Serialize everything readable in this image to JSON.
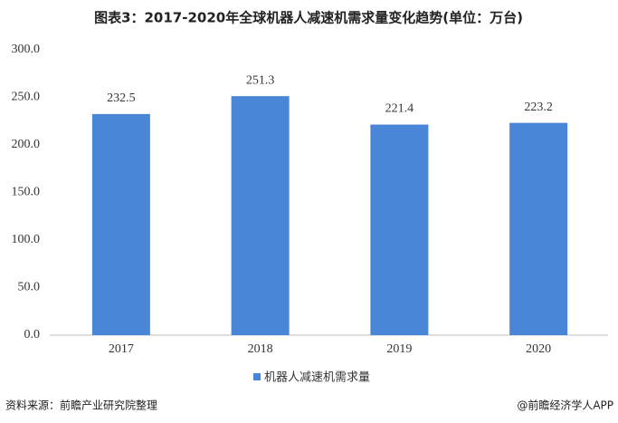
{
  "chart_data": {
    "type": "bar",
    "title": "图表3：2017-2020年全球机器人减速机需求量变化趋势(单位：万台)",
    "categories": [
      "2017",
      "2018",
      "2019",
      "2020"
    ],
    "series": [
      {
        "name": "机器人减速机需求量",
        "color": "#4a86d8",
        "values": [
          232.5,
          251.3,
          221.4,
          223.2
        ]
      }
    ],
    "ylim": [
      0,
      300
    ],
    "yticks": [
      {
        "value": 0,
        "label": "0.0"
      },
      {
        "value": 50,
        "label": "50.0"
      },
      {
        "value": 100,
        "label": "100.0"
      },
      {
        "value": 150,
        "label": "150.0"
      },
      {
        "value": 200,
        "label": "200.0"
      },
      {
        "value": 250,
        "label": "250.0"
      },
      {
        "value": 300,
        "label": "300.0"
      }
    ],
    "grid": false
  },
  "footer": {
    "source": "资料来源：前瞻产业研究院整理",
    "credit": "@前瞻经济学人APP"
  }
}
